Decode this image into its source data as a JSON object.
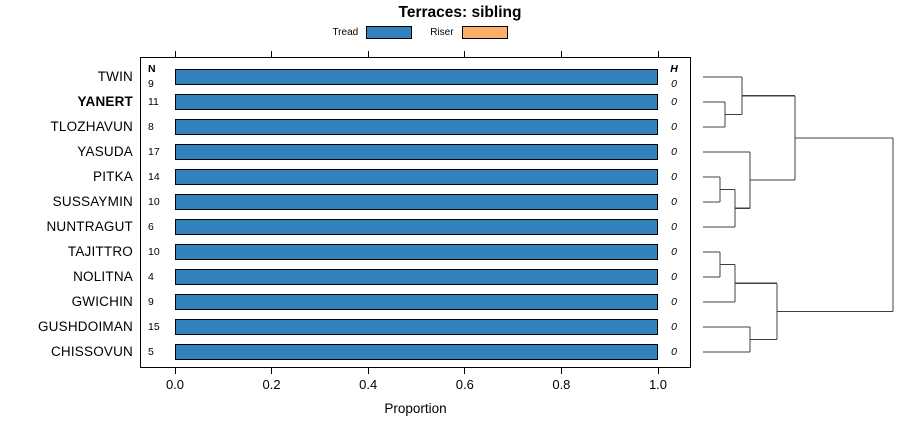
{
  "title": "Terraces: sibling",
  "legend": {
    "items": [
      {
        "label": "Tread",
        "color": "#3182bd"
      },
      {
        "label": "Riser",
        "color": "#fdae6b"
      }
    ]
  },
  "columns": {
    "n_header": "N",
    "h_header": "H"
  },
  "x_axis": {
    "label": "Proportion",
    "ticks": [
      "0.0",
      "0.2",
      "0.4",
      "0.6",
      "0.8",
      "1.0"
    ],
    "min": 0,
    "max": 1
  },
  "rows": [
    {
      "label": "TWIN",
      "n": "9",
      "tread": 1.0,
      "riser": 0,
      "h": "0",
      "bold": false
    },
    {
      "label": "YANERT",
      "n": "11",
      "tread": 1.0,
      "riser": 0,
      "h": "0",
      "bold": true
    },
    {
      "label": "TLOZHAVUN",
      "n": "8",
      "tread": 1.0,
      "riser": 0,
      "h": "0",
      "bold": false
    },
    {
      "label": "YASUDA",
      "n": "17",
      "tread": 1.0,
      "riser": 0,
      "h": "0",
      "bold": false
    },
    {
      "label": "PITKA",
      "n": "14",
      "tread": 1.0,
      "riser": 0,
      "h": "0",
      "bold": false
    },
    {
      "label": "SUSSAYMIN",
      "n": "10",
      "tread": 1.0,
      "riser": 0,
      "h": "0",
      "bold": false
    },
    {
      "label": "NUNTRAGUT",
      "n": "6",
      "tread": 1.0,
      "riser": 0,
      "h": "0",
      "bold": false
    },
    {
      "label": "TAJITTRO",
      "n": "10",
      "tread": 1.0,
      "riser": 0,
      "h": "0",
      "bold": false
    },
    {
      "label": "NOLITNA",
      "n": "4",
      "tread": 1.0,
      "riser": 0,
      "h": "0",
      "bold": false
    },
    {
      "label": "GWICHIN",
      "n": "9",
      "tread": 1.0,
      "riser": 0,
      "h": "0",
      "bold": false
    },
    {
      "label": "GUSHDOIMAN",
      "n": "15",
      "tread": 1.0,
      "riser": 0,
      "h": "0",
      "bold": false
    },
    {
      "label": "CHISSOVUN",
      "n": "5",
      "tread": 1.0,
      "riser": 0,
      "h": "0",
      "bold": false
    }
  ],
  "dendrogram": {
    "merges": [
      {
        "id": "m1",
        "children": [
          "YANERT",
          "TLOZHAVUN"
        ],
        "x": 30
      },
      {
        "id": "m2",
        "children": [
          "TWIN",
          "m1"
        ],
        "x": 47
      },
      {
        "id": "m3",
        "children": [
          "PITKA",
          "SUSSAYMIN"
        ],
        "x": 25
      },
      {
        "id": "m4",
        "children": [
          "m3",
          "NUNTRAGUT"
        ],
        "x": 40
      },
      {
        "id": "m5",
        "children": [
          "YASUDA",
          "m4"
        ],
        "x": 55
      },
      {
        "id": "m6",
        "children": [
          "m2",
          "m5"
        ],
        "x": 100
      },
      {
        "id": "m7",
        "children": [
          "TAJITTRO",
          "NOLITNA"
        ],
        "x": 25
      },
      {
        "id": "m8",
        "children": [
          "m7",
          "GWICHIN"
        ],
        "x": 40
      },
      {
        "id": "m9",
        "children": [
          "GUSHDOIMAN",
          "CHISSOVUN"
        ],
        "x": 55
      },
      {
        "id": "m10",
        "children": [
          "m8",
          "m9"
        ],
        "x": 82
      },
      {
        "id": "root",
        "children": [
          "m6",
          "m10"
        ],
        "x": 198
      }
    ]
  },
  "chart_data": {
    "type": "bar",
    "orientation": "horizontal",
    "stacked": true,
    "title": "Terraces: sibling",
    "xlabel": "Proportion",
    "xlim": [
      0,
      1
    ],
    "xticks": [
      0.0,
      0.2,
      0.4,
      0.6,
      0.8,
      1.0
    ],
    "categories": [
      "TWIN",
      "YANERT",
      "TLOZHAVUN",
      "YASUDA",
      "PITKA",
      "SUSSAYMIN",
      "NUNTRAGUT",
      "TAJITTRO",
      "NOLITNA",
      "GWICHIN",
      "GUSHDOIMAN",
      "CHISSOVUN"
    ],
    "series": [
      {
        "name": "Tread",
        "color": "#3182bd",
        "values": [
          1,
          1,
          1,
          1,
          1,
          1,
          1,
          1,
          1,
          1,
          1,
          1
        ]
      },
      {
        "name": "Riser",
        "color": "#fdae6b",
        "values": [
          0,
          0,
          0,
          0,
          0,
          0,
          0,
          0,
          0,
          0,
          0,
          0
        ]
      }
    ],
    "annotations": {
      "N": [
        9,
        11,
        8,
        17,
        14,
        10,
        6,
        10,
        4,
        9,
        15,
        5
      ],
      "H": [
        0,
        0,
        0,
        0,
        0,
        0,
        0,
        0,
        0,
        0,
        0,
        0
      ]
    },
    "highlighted_category": "YANERT",
    "legend_position": "top",
    "grid": false,
    "right_panel": "dendrogram"
  }
}
